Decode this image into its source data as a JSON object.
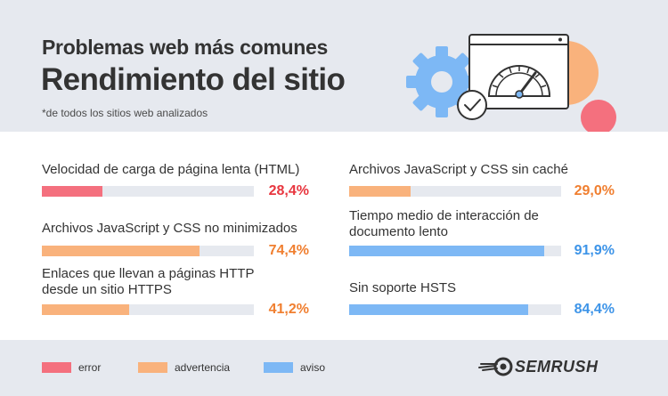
{
  "header": {
    "title_line1": "Problemas web más comunes",
    "title_line2": "Rendimiento del sitio",
    "note": "*de todos los sitios web analizados"
  },
  "colors": {
    "error": "#f4707e",
    "advertencia": "#f9b27c",
    "aviso": "#7db8f5",
    "error_text": "#e8363f",
    "advertencia_text": "#f07f30",
    "aviso_text": "#3d94e8",
    "track": "#e6e9ef"
  },
  "chart_data": {
    "type": "bar",
    "orientation": "horizontal",
    "ylim": [
      0,
      100
    ],
    "categories": [
      "Velocidad de carga de página lenta (HTML)",
      "Archivos JavaScript y CSS no minimizados",
      "Enlaces que llevan a páginas HTTP desde un sitio HTTPS",
      "Archivos JavaScript y CSS sin caché",
      "Tiempo medio de interacción de documento lento",
      "Sin soporte HSTS"
    ],
    "items": [
      {
        "label": "Velocidad de carga de página lenta (HTML)",
        "value": 28.4,
        "value_label": "28,4%",
        "severity": "error"
      },
      {
        "label": "Archivos JavaScript y CSS no minimizados",
        "value": 74.4,
        "value_label": "74,4%",
        "severity": "advertencia"
      },
      {
        "label": "Enlaces que llevan a páginas HTTP desde un sitio HTTPS",
        "value": 41.2,
        "value_label": "41,2%",
        "severity": "advertencia"
      },
      {
        "label": "Archivos JavaScript y CSS sin caché",
        "value": 29.0,
        "value_label": "29,0%",
        "severity": "advertencia"
      },
      {
        "label": "Tiempo medio de interacción de documento lento",
        "value": 91.9,
        "value_label": "91,9%",
        "severity": "aviso"
      },
      {
        "label": "Sin soporte HSTS",
        "value": 84.4,
        "value_label": "84,4%",
        "severity": "aviso"
      }
    ],
    "legend": [
      {
        "key": "error",
        "label": "error"
      },
      {
        "key": "advertencia",
        "label": "advertencia"
      },
      {
        "key": "aviso",
        "label": "aviso"
      }
    ]
  },
  "illustration_icons": [
    "gear-icon",
    "speedometer-icon",
    "checkmark-icon"
  ],
  "brand": {
    "name": "SEMRUSH",
    "icon": "semrush-fireball-logo"
  }
}
